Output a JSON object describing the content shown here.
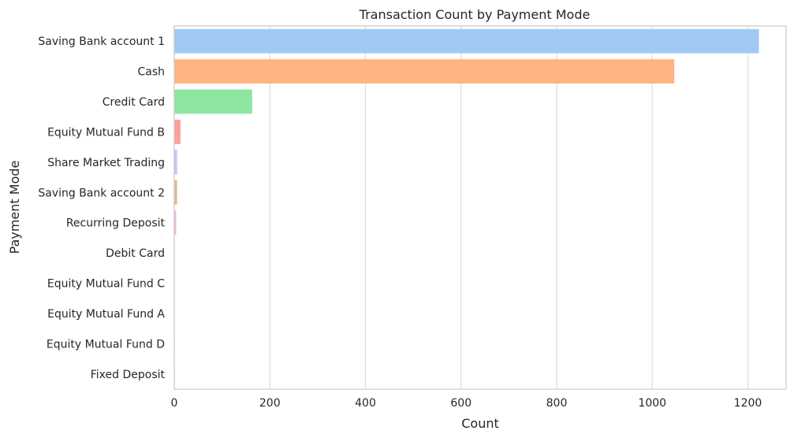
{
  "chart_data": {
    "type": "bar",
    "orientation": "horizontal",
    "title": "Transaction Count by Payment Mode",
    "xlabel": "Count",
    "ylabel": "Payment Mode",
    "xlim": [
      0,
      1280
    ],
    "xticks": [
      0,
      200,
      400,
      600,
      800,
      1000,
      1200
    ],
    "grid": "vertical",
    "categories": [
      "Saving Bank account 1",
      "Cash",
      "Credit Card",
      "Equity Mutual Fund B",
      "Share Market Trading",
      "Saving Bank account 2",
      "Recurring Deposit",
      "Debit Card",
      "Equity Mutual Fund C",
      "Equity Mutual Fund A",
      "Equity Mutual Fund D",
      "Fixed Deposit"
    ],
    "values": [
      1223,
      1046,
      163,
      13,
      6,
      6,
      4,
      1,
      1,
      1,
      1,
      1
    ],
    "colors": [
      "#a1c9f4",
      "#ffb482",
      "#8de5a1",
      "#ff9f9b",
      "#d0bbff",
      "#debb9b",
      "#fab0e4",
      "#cfcfcf",
      "#fffea3",
      "#b9f2f0",
      "#a1c9f4",
      "#ffb482"
    ]
  }
}
